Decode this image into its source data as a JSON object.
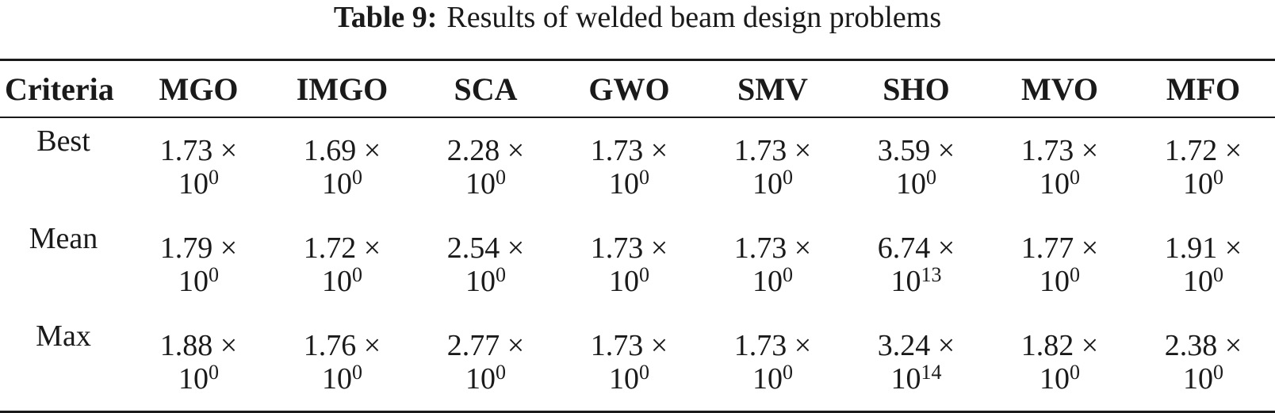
{
  "caption": {
    "label": "Table 9:",
    "title": "Results of welded beam design problems"
  },
  "table": {
    "headers": [
      "Criteria",
      "MGO",
      "IMGO",
      "SCA",
      "GWO",
      "SMV",
      "SHO",
      "MVO",
      "MFO"
    ],
    "rows": [
      {
        "label": "Best",
        "cells": [
          {
            "mantissa": "1.73 ×",
            "base": "10",
            "exp": "0"
          },
          {
            "mantissa": "1.69 ×",
            "base": "10",
            "exp": "0"
          },
          {
            "mantissa": "2.28 ×",
            "base": "10",
            "exp": "0"
          },
          {
            "mantissa": "1.73 ×",
            "base": "10",
            "exp": "0"
          },
          {
            "mantissa": "1.73 ×",
            "base": "10",
            "exp": "0"
          },
          {
            "mantissa": "3.59 ×",
            "base": "10",
            "exp": "0"
          },
          {
            "mantissa": "1.73 ×",
            "base": "10",
            "exp": "0"
          },
          {
            "mantissa": "1.72 ×",
            "base": "10",
            "exp": "0"
          }
        ]
      },
      {
        "label": "Mean",
        "cells": [
          {
            "mantissa": "1.79 ×",
            "base": "10",
            "exp": "0"
          },
          {
            "mantissa": "1.72 ×",
            "base": "10",
            "exp": "0"
          },
          {
            "mantissa": "2.54 ×",
            "base": "10",
            "exp": "0"
          },
          {
            "mantissa": "1.73 ×",
            "base": "10",
            "exp": "0"
          },
          {
            "mantissa": "1.73 ×",
            "base": "10",
            "exp": "0"
          },
          {
            "mantissa": "6.74 ×",
            "base": "10",
            "exp": "13"
          },
          {
            "mantissa": "1.77 ×",
            "base": "10",
            "exp": "0"
          },
          {
            "mantissa": "1.91 ×",
            "base": "10",
            "exp": "0"
          }
        ]
      },
      {
        "label": "Max",
        "cells": [
          {
            "mantissa": "1.88 ×",
            "base": "10",
            "exp": "0"
          },
          {
            "mantissa": "1.76 ×",
            "base": "10",
            "exp": "0"
          },
          {
            "mantissa": "2.77 ×",
            "base": "10",
            "exp": "0"
          },
          {
            "mantissa": "1.73 ×",
            "base": "10",
            "exp": "0"
          },
          {
            "mantissa": "1.73 ×",
            "base": "10",
            "exp": "0"
          },
          {
            "mantissa": "3.24 ×",
            "base": "10",
            "exp": "14"
          },
          {
            "mantissa": "1.82 ×",
            "base": "10",
            "exp": "0"
          },
          {
            "mantissa": "2.38 ×",
            "base": "10",
            "exp": "0"
          }
        ]
      }
    ]
  }
}
